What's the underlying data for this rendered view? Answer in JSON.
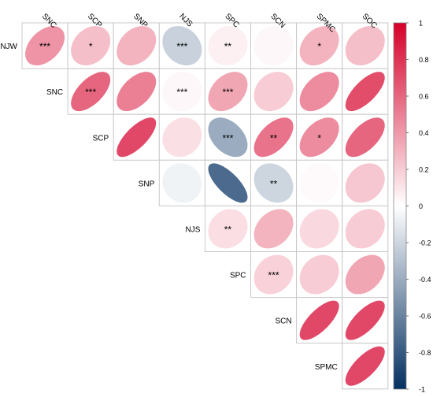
{
  "chart_data": {
    "type": "heatmap",
    "variables": [
      "NJW",
      "SNC",
      "SCP",
      "SNP",
      "NJS",
      "SPC",
      "SCN",
      "SPMC",
      "SOC"
    ],
    "column_labels": [
      "SNC",
      "SCP",
      "SNP",
      "NJS",
      "SPC",
      "SCN",
      "SPMC",
      "SOC"
    ],
    "row_labels": [
      "NJW",
      "SNC",
      "SCP",
      "SNP",
      "NJS",
      "SPC",
      "SCN",
      "SPMC"
    ],
    "cells": [
      {
        "row": "NJW",
        "col": "SNC",
        "value": 0.42,
        "sig": "***"
      },
      {
        "row": "NJW",
        "col": "SCP",
        "value": 0.25,
        "sig": "*"
      },
      {
        "row": "NJW",
        "col": "SNP",
        "value": 0.3,
        "sig": ""
      },
      {
        "row": "NJW",
        "col": "NJS",
        "value": -0.22,
        "sig": "***"
      },
      {
        "row": "NJW",
        "col": "SPC",
        "value": 0.06,
        "sig": "**"
      },
      {
        "row": "NJW",
        "col": "SCN",
        "value": 0.03,
        "sig": ""
      },
      {
        "row": "NJW",
        "col": "SPMC",
        "value": 0.3,
        "sig": "*"
      },
      {
        "row": "NJW",
        "col": "SOC",
        "value": 0.25,
        "sig": ""
      },
      {
        "row": "SNC",
        "col": "SCP",
        "value": 0.6,
        "sig": "***"
      },
      {
        "row": "SNC",
        "col": "SNP",
        "value": 0.5,
        "sig": ""
      },
      {
        "row": "SNC",
        "col": "NJS",
        "value": 0.03,
        "sig": "***"
      },
      {
        "row": "SNC",
        "col": "SPC",
        "value": 0.35,
        "sig": "***"
      },
      {
        "row": "SNC",
        "col": "SCN",
        "value": 0.2,
        "sig": ""
      },
      {
        "row": "SNC",
        "col": "SPMC",
        "value": 0.45,
        "sig": ""
      },
      {
        "row": "SNC",
        "col": "SOC",
        "value": 0.7,
        "sig": ""
      },
      {
        "row": "SCP",
        "col": "SNP",
        "value": 0.72,
        "sig": ""
      },
      {
        "row": "SCP",
        "col": "NJS",
        "value": 0.12,
        "sig": ""
      },
      {
        "row": "SCP",
        "col": "SPC",
        "value": -0.4,
        "sig": "***"
      },
      {
        "row": "SCP",
        "col": "SCN",
        "value": 0.55,
        "sig": "**"
      },
      {
        "row": "SCP",
        "col": "SPMC",
        "value": 0.45,
        "sig": "*"
      },
      {
        "row": "SCP",
        "col": "SOC",
        "value": 0.6,
        "sig": ""
      },
      {
        "row": "SNP",
        "col": "NJS",
        "value": -0.06,
        "sig": ""
      },
      {
        "row": "SNP",
        "col": "SPC",
        "value": -0.72,
        "sig": ""
      },
      {
        "row": "SNP",
        "col": "SCN",
        "value": -0.2,
        "sig": "**"
      },
      {
        "row": "SNP",
        "col": "SPMC",
        "value": 0.02,
        "sig": ""
      },
      {
        "row": "SNP",
        "col": "SOC",
        "value": 0.22,
        "sig": ""
      },
      {
        "row": "NJS",
        "col": "SPC",
        "value": 0.13,
        "sig": "**"
      },
      {
        "row": "NJS",
        "col": "SCN",
        "value": 0.3,
        "sig": ""
      },
      {
        "row": "NJS",
        "col": "SPMC",
        "value": 0.15,
        "sig": ""
      },
      {
        "row": "NJS",
        "col": "SOC",
        "value": 0.2,
        "sig": ""
      },
      {
        "row": "SPC",
        "col": "SCN",
        "value": 0.18,
        "sig": "***"
      },
      {
        "row": "SPC",
        "col": "SPMC",
        "value": 0.2,
        "sig": ""
      },
      {
        "row": "SPC",
        "col": "SOC",
        "value": 0.35,
        "sig": ""
      },
      {
        "row": "SCN",
        "col": "SPMC",
        "value": 0.72,
        "sig": ""
      },
      {
        "row": "SCN",
        "col": "SOC",
        "value": 0.72,
        "sig": ""
      },
      {
        "row": "SPMC",
        "col": "SOC",
        "value": 0.72,
        "sig": ""
      }
    ],
    "colorbar": {
      "range": [
        -1,
        1
      ],
      "ticks": [
        "1",
        "0.8",
        "0.6",
        "0.4",
        "0.2",
        "0",
        "-0.2",
        "-0.4",
        "-0.6",
        "-0.8",
        "-1"
      ],
      "colors": {
        "negative": "#053061",
        "neutral": "#ffffff",
        "positive": "#d6002a"
      }
    }
  }
}
